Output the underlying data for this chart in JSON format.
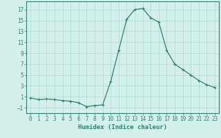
{
  "x": [
    0,
    1,
    2,
    3,
    4,
    5,
    6,
    7,
    8,
    9,
    10,
    11,
    12,
    13,
    14,
    15,
    16,
    17,
    18,
    19,
    20,
    21,
    22,
    23
  ],
  "y": [
    0.8,
    0.5,
    0.6,
    0.5,
    0.3,
    0.2,
    -0.1,
    -0.8,
    -0.6,
    -0.5,
    3.8,
    9.5,
    15.2,
    17.0,
    17.2,
    15.5,
    14.7,
    9.5,
    7.0,
    6.0,
    5.0,
    4.0,
    3.2,
    2.7
  ],
  "line_color": "#2e7d6e",
  "marker": "+",
  "marker_size": 3,
  "bg_color": "#d4f0ec",
  "grid_color": "#aad8d2",
  "xlabel": "Humidex (Indice chaleur)",
  "xlim": [
    -0.5,
    23.5
  ],
  "ylim": [
    -2,
    18.5
  ],
  "yticks": [
    -1,
    1,
    3,
    5,
    7,
    9,
    11,
    13,
    15,
    17
  ],
  "xticks": [
    0,
    1,
    2,
    3,
    4,
    5,
    6,
    7,
    8,
    9,
    10,
    11,
    12,
    13,
    14,
    15,
    16,
    17,
    18,
    19,
    20,
    21,
    22,
    23
  ],
  "axis_color": "#2e7d6e",
  "label_fontsize": 6.5,
  "tick_fontsize": 5.5
}
